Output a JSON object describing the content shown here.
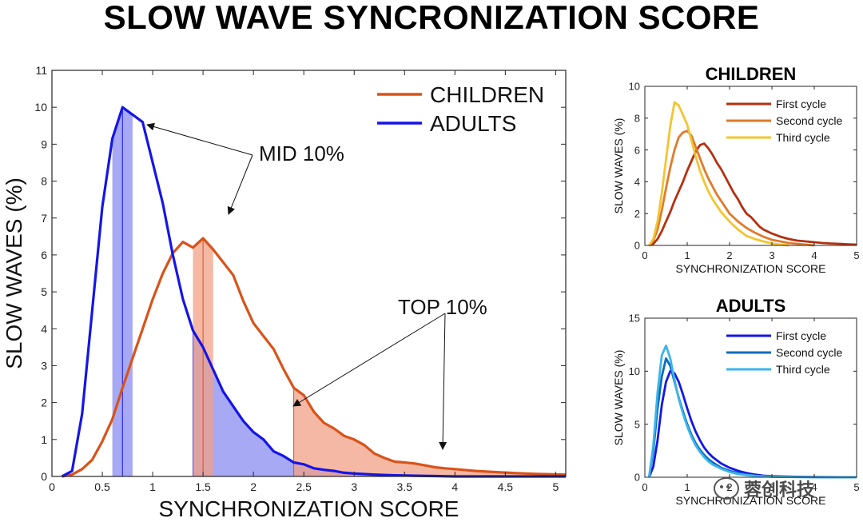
{
  "title": "SLOW WAVE SYNCRONIZATION SCORE",
  "watermark": "蓉创科技",
  "colors": {
    "children": "#d95319",
    "adults": "#1515e8",
    "children_fill": "#f0a085",
    "adults_fill": "#8a8cf2",
    "c_first": "#b5300f",
    "c_second": "#e07a2a",
    "c_third": "#f4c430",
    "a_first": "#1515e8",
    "a_second": "#0a6cba",
    "a_third": "#3db4ea"
  },
  "chart_data": [
    {
      "type": "line",
      "id": "main",
      "xlabel": "SYNCHRONIZATION SCORE",
      "ylabel": "SLOW WAVES (%)",
      "xlim": [
        0,
        5.1
      ],
      "ylim": [
        0,
        11
      ],
      "xticks": [
        0,
        0.5,
        1,
        1.5,
        2,
        2.5,
        3,
        3.5,
        4,
        4.5,
        5
      ],
      "xtick_labels": [
        "0",
        "0.5",
        "1",
        "1.5",
        "2",
        "2.5",
        "3",
        "3.5",
        "4",
        "4.5",
        "5"
      ],
      "yticks": [
        0,
        1,
        2,
        3,
        4,
        5,
        6,
        7,
        8,
        9,
        10,
        11
      ],
      "ytick_labels": [
        "0",
        "1",
        "2",
        "3",
        "4",
        "5",
        "6",
        "7",
        "8",
        "9",
        "10",
        "11"
      ],
      "legend": [
        "CHILDREN",
        "ADULTS"
      ],
      "annotations": [
        "MID 10%",
        "TOP 10%"
      ],
      "series": [
        {
          "name": "ADULTS",
          "x": [
            0.1,
            0.2,
            0.3,
            0.4,
            0.5,
            0.6,
            0.7,
            0.8,
            0.9,
            1.0,
            1.1,
            1.2,
            1.3,
            1.4,
            1.5,
            1.6,
            1.7,
            1.8,
            1.9,
            2.0,
            2.1,
            2.2,
            2.3,
            2.4,
            2.5,
            2.6,
            2.7,
            2.8,
            2.9,
            3.0,
            3.2,
            3.4,
            3.6,
            3.8,
            4.0,
            4.5,
            5.1
          ],
          "y": [
            0.0,
            0.15,
            1.7,
            4.5,
            7.3,
            9.15,
            10.0,
            9.8,
            9.6,
            8.5,
            7.4,
            6.0,
            4.8,
            3.95,
            3.5,
            2.9,
            2.3,
            1.9,
            1.5,
            1.2,
            1.0,
            0.68,
            0.55,
            0.38,
            0.33,
            0.22,
            0.18,
            0.15,
            0.1,
            0.08,
            0.05,
            0.03,
            0.02,
            0.01,
            0.0,
            0.0,
            0.0
          ]
        },
        {
          "name": "CHILDREN",
          "x": [
            0.1,
            0.2,
            0.3,
            0.4,
            0.5,
            0.6,
            0.7,
            0.8,
            0.9,
            1.0,
            1.1,
            1.2,
            1.3,
            1.4,
            1.5,
            1.6,
            1.7,
            1.8,
            1.9,
            2.0,
            2.1,
            2.2,
            2.3,
            2.4,
            2.5,
            2.6,
            2.7,
            2.8,
            2.9,
            3.0,
            3.1,
            3.2,
            3.3,
            3.4,
            3.5,
            3.6,
            3.7,
            3.8,
            3.9,
            4.0,
            4.2,
            4.4,
            4.6,
            4.8,
            5.1
          ],
          "y": [
            0.0,
            0.05,
            0.2,
            0.45,
            0.95,
            1.55,
            2.4,
            3.2,
            4.0,
            4.8,
            5.5,
            6.05,
            6.35,
            6.2,
            6.45,
            6.15,
            5.8,
            5.45,
            4.75,
            4.15,
            3.8,
            3.45,
            2.9,
            2.4,
            2.2,
            1.75,
            1.45,
            1.3,
            1.1,
            1.0,
            0.85,
            0.62,
            0.5,
            0.4,
            0.38,
            0.35,
            0.3,
            0.25,
            0.22,
            0.2,
            0.15,
            0.12,
            0.09,
            0.07,
            0.05
          ]
        }
      ],
      "shaded_bands": [
        {
          "series": "ADULTS",
          "from": 0.6,
          "to": 0.8,
          "marker": 0.7
        },
        {
          "series": "ADULTS",
          "from": 1.4,
          "to": 5.1,
          "marker": 1.4
        },
        {
          "series": "CHILDREN",
          "from": 1.4,
          "to": 1.6,
          "marker": 1.5
        },
        {
          "series": "CHILDREN",
          "from": 2.4,
          "to": 5.1,
          "marker": 2.4
        }
      ]
    },
    {
      "type": "line",
      "id": "children",
      "title": "CHILDREN",
      "xlabel": "SYNCHRONIZATION SCORE",
      "ylabel": "SLOW WAVES (%)",
      "xlim": [
        0,
        5
      ],
      "ylim": [
        0,
        10
      ],
      "xticks": [
        0,
        1,
        2,
        3,
        4,
        5
      ],
      "xtick_labels": [
        "0",
        "1",
        "2",
        "3",
        "4",
        "5"
      ],
      "yticks": [
        0,
        2,
        4,
        6,
        8,
        10
      ],
      "ytick_labels": [
        "0",
        "2",
        "4",
        "6",
        "8",
        "10"
      ],
      "legend": [
        "First cycle",
        "Second cycle",
        "Third cycle"
      ],
      "series": [
        {
          "name": "First cycle",
          "x": [
            0.1,
            0.2,
            0.3,
            0.4,
            0.5,
            0.6,
            0.7,
            0.8,
            0.9,
            1.0,
            1.1,
            1.2,
            1.3,
            1.4,
            1.5,
            1.6,
            1.7,
            1.8,
            1.9,
            2.0,
            2.1,
            2.2,
            2.3,
            2.4,
            2.5,
            2.6,
            2.7,
            2.8,
            3.0,
            3.2,
            3.4,
            3.6,
            3.8,
            4.0,
            4.2,
            4.4,
            4.6,
            4.8,
            5.0
          ],
          "y": [
            0.0,
            0.1,
            0.4,
            0.9,
            1.5,
            2.1,
            2.8,
            3.4,
            4.0,
            4.7,
            5.3,
            5.9,
            6.3,
            6.4,
            6.1,
            5.7,
            5.2,
            4.8,
            4.3,
            3.8,
            3.3,
            2.9,
            2.4,
            2.0,
            1.8,
            1.5,
            1.2,
            1.0,
            0.75,
            0.55,
            0.4,
            0.3,
            0.25,
            0.2,
            0.15,
            0.12,
            0.1,
            0.07,
            0.05
          ]
        },
        {
          "name": "Second cycle",
          "x": [
            0.1,
            0.2,
            0.3,
            0.4,
            0.5,
            0.6,
            0.7,
            0.8,
            0.9,
            1.0,
            1.1,
            1.2,
            1.3,
            1.4,
            1.5,
            1.6,
            1.7,
            1.8,
            1.9,
            2.0,
            2.2,
            2.4,
            2.6,
            2.8,
            3.0,
            3.2,
            3.4,
            3.6,
            3.8,
            4.0
          ],
          "y": [
            0.0,
            0.3,
            1.0,
            2.2,
            3.6,
            4.9,
            6.0,
            6.8,
            7.1,
            7.2,
            6.9,
            6.2,
            5.5,
            4.8,
            4.2,
            3.7,
            3.2,
            2.8,
            2.4,
            2.0,
            1.5,
            1.1,
            0.8,
            0.55,
            0.35,
            0.25,
            0.15,
            0.1,
            0.05,
            0.0
          ]
        },
        {
          "name": "Third cycle",
          "x": [
            0.1,
            0.2,
            0.3,
            0.4,
            0.5,
            0.6,
            0.7,
            0.8,
            0.9,
            1.0,
            1.1,
            1.2,
            1.3,
            1.4,
            1.5,
            1.6,
            1.7,
            1.8,
            1.9,
            2.0,
            2.2,
            2.4,
            2.6,
            2.8,
            3.0,
            3.2,
            3.4
          ],
          "y": [
            0.0,
            0.4,
            1.5,
            3.3,
            5.4,
            7.5,
            9.0,
            8.8,
            8.2,
            7.6,
            6.6,
            5.6,
            4.7,
            4.0,
            3.4,
            2.9,
            2.5,
            2.1,
            1.8,
            1.5,
            1.0,
            0.6,
            0.4,
            0.25,
            0.12,
            0.05,
            0.0
          ]
        }
      ]
    },
    {
      "type": "line",
      "id": "adults",
      "title": "ADULTS",
      "xlabel": "SYNCHRONIZATION SCORE",
      "ylabel": "SLOW WAVES (%)",
      "xlim": [
        0,
        5
      ],
      "ylim": [
        0,
        15
      ],
      "xticks": [
        0,
        1,
        2,
        3,
        4,
        5
      ],
      "xtick_labels": [
        "0",
        "1",
        "2",
        "3",
        "4",
        "5"
      ],
      "yticks": [
        0,
        5,
        10,
        15
      ],
      "ytick_labels": [
        "0",
        "5",
        "10",
        "15"
      ],
      "legend": [
        "First cycle",
        "Second cycle",
        "Third cycle"
      ],
      "series": [
        {
          "name": "First cycle",
          "x": [
            0.1,
            0.2,
            0.3,
            0.4,
            0.5,
            0.6,
            0.7,
            0.8,
            0.9,
            1.0,
            1.1,
            1.2,
            1.3,
            1.4,
            1.5,
            1.6,
            1.8,
            2.0,
            2.2,
            2.4,
            2.6,
            2.8,
            3.0,
            3.5,
            4.0,
            5.0
          ],
          "y": [
            0.0,
            1.0,
            3.5,
            6.8,
            9.0,
            10.0,
            9.8,
            9.0,
            7.8,
            6.5,
            5.3,
            4.3,
            3.5,
            2.8,
            2.3,
            1.9,
            1.3,
            0.9,
            0.6,
            0.4,
            0.25,
            0.15,
            0.1,
            0.05,
            0.02,
            0.0
          ]
        },
        {
          "name": "Second cycle",
          "x": [
            0.1,
            0.2,
            0.3,
            0.4,
            0.5,
            0.6,
            0.7,
            0.8,
            0.9,
            1.0,
            1.1,
            1.2,
            1.3,
            1.4,
            1.5,
            1.6,
            1.8,
            2.0,
            2.2,
            2.4,
            2.6,
            2.8,
            3.0,
            3.5,
            4.0,
            5.0
          ],
          "y": [
            0.0,
            2.5,
            6.5,
            9.5,
            11.2,
            10.5,
            9.0,
            7.5,
            6.2,
            5.0,
            4.0,
            3.2,
            2.6,
            2.1,
            1.7,
            1.4,
            0.9,
            0.6,
            0.4,
            0.25,
            0.15,
            0.1,
            0.06,
            0.03,
            0.01,
            0.0
          ]
        },
        {
          "name": "Third cycle",
          "x": [
            0.1,
            0.2,
            0.3,
            0.4,
            0.5,
            0.6,
            0.7,
            0.8,
            0.9,
            1.0,
            1.1,
            1.2,
            1.3,
            1.4,
            1.5,
            1.6,
            1.8,
            2.0,
            2.2,
            2.4,
            2.6,
            2.8,
            3.0,
            3.5,
            4.0,
            5.0
          ],
          "y": [
            0.0,
            3.0,
            8.0,
            11.5,
            12.4,
            11.2,
            9.2,
            7.4,
            6.0,
            4.8,
            3.8,
            3.0,
            2.4,
            1.9,
            1.5,
            1.2,
            0.8,
            0.5,
            0.3,
            0.2,
            0.12,
            0.08,
            0.05,
            0.02,
            0.01,
            0.0
          ]
        }
      ]
    }
  ]
}
